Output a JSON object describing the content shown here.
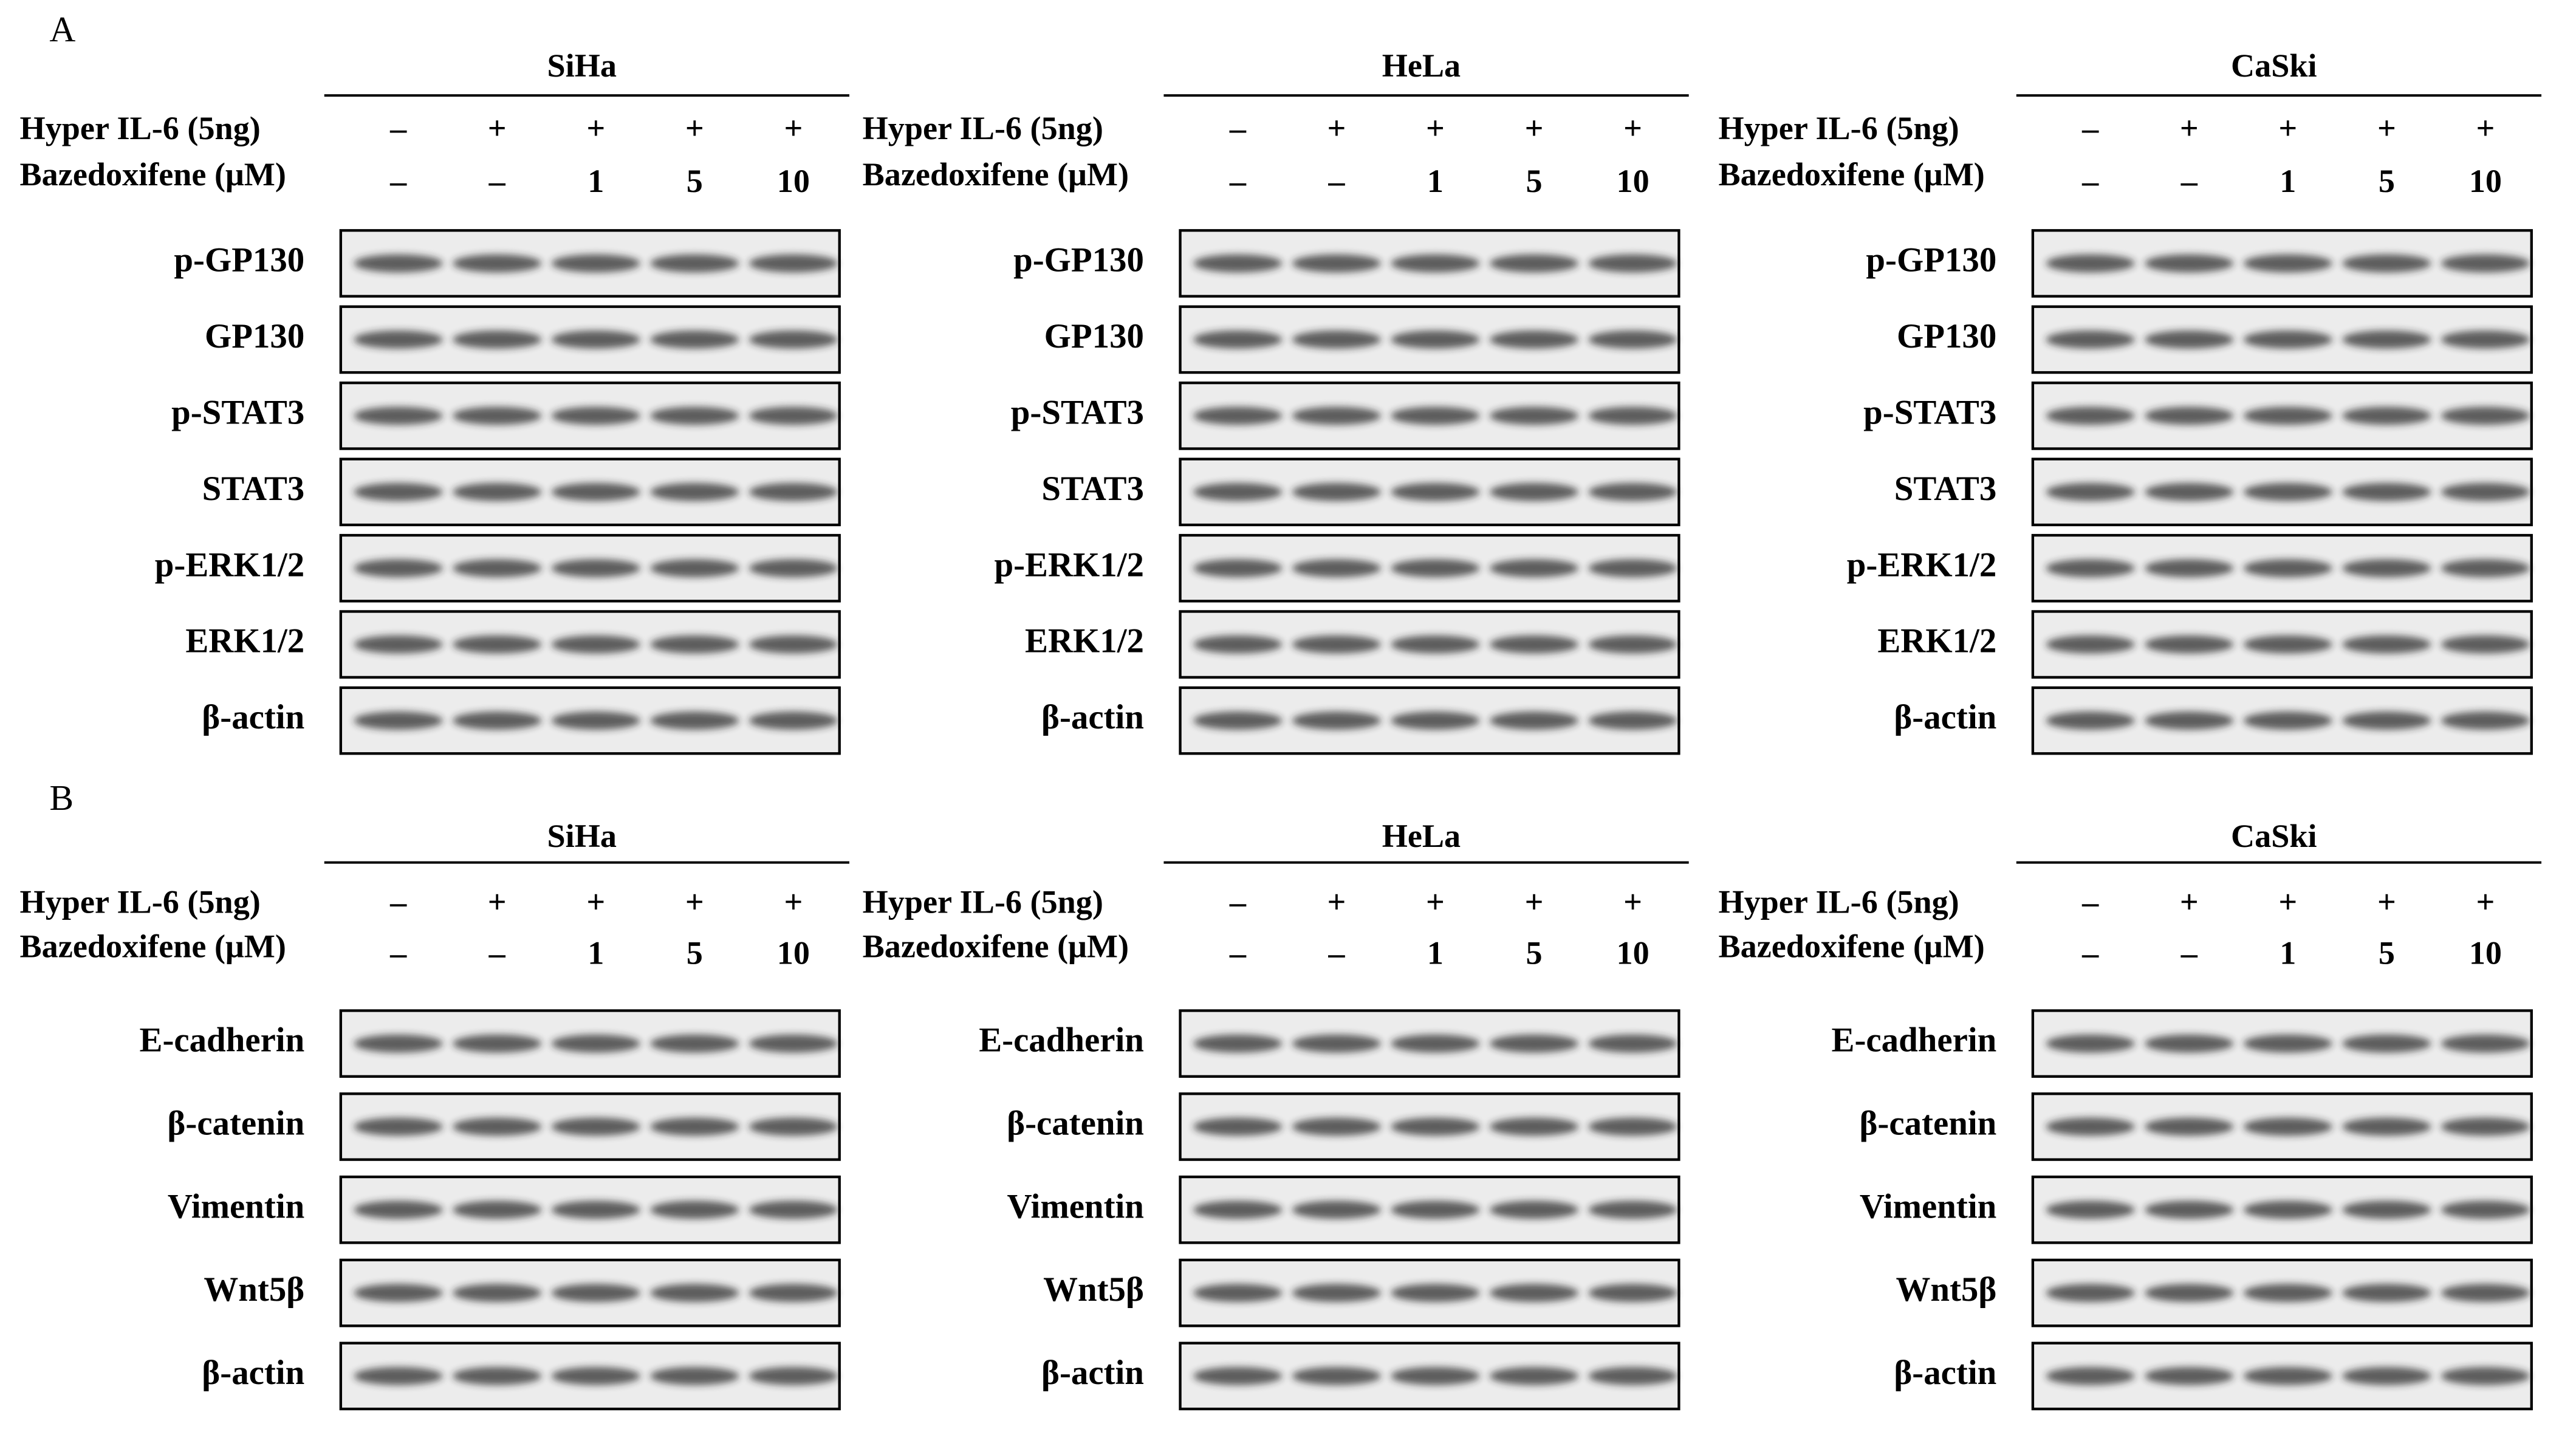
{
  "panels": [
    {
      "label": "A",
      "blots": [
        {
          "cell_line": "SiHa",
          "treatments": [
            {
              "name": "Hyper IL-6 (5ng)",
              "lanes": [
                "–",
                "+",
                "+",
                "+",
                "+"
              ]
            },
            {
              "name": "Bazedoxifene (μM)",
              "lanes": [
                "–",
                "–",
                "1",
                "5",
                "10"
              ]
            }
          ],
          "proteins": [
            "p-GP130",
            "GP130",
            "p-STAT3",
            "STAT3",
            "p-ERK1/2",
            "ERK1/2",
            "β-actin"
          ]
        },
        {
          "cell_line": "HeLa",
          "treatments": [
            {
              "name": "Hyper IL-6 (5ng)",
              "lanes": [
                "–",
                "+",
                "+",
                "+",
                "+"
              ]
            },
            {
              "name": "Bazedoxifene (μM)",
              "lanes": [
                "–",
                "–",
                "1",
                "5",
                "10"
              ]
            }
          ],
          "proteins": [
            "p-GP130",
            "GP130",
            "p-STAT3",
            "STAT3",
            "p-ERK1/2",
            "ERK1/2",
            "β-actin"
          ]
        },
        {
          "cell_line": "CaSki",
          "treatments": [
            {
              "name": "Hyper IL-6 (5ng)",
              "lanes": [
                "–",
                "+",
                "+",
                "+",
                "+"
              ]
            },
            {
              "name": "Bazedoxifene (μM)",
              "lanes": [
                "–",
                "–",
                "1",
                "5",
                "10"
              ]
            }
          ],
          "proteins": [
            "p-GP130",
            "GP130",
            "p-STAT3",
            "STAT3",
            "p-ERK1/2",
            "ERK1/2",
            "β-actin"
          ]
        }
      ]
    },
    {
      "label": "B",
      "blots": [
        {
          "cell_line": "SiHa",
          "treatments": [
            {
              "name": "Hyper IL-6 (5ng)",
              "lanes": [
                "–",
                "+",
                "+",
                "+",
                "+"
              ]
            },
            {
              "name": "Bazedoxifene (μM)",
              "lanes": [
                "–",
                "–",
                "1",
                "5",
                "10"
              ]
            }
          ],
          "proteins": [
            "E-cadherin",
            "β-catenin",
            "Vimentin",
            "Wnt5β",
            "β-actin"
          ]
        },
        {
          "cell_line": "HeLa",
          "treatments": [
            {
              "name": "Hyper IL-6 (5ng)",
              "lanes": [
                "–",
                "+",
                "+",
                "+",
                "+"
              ]
            },
            {
              "name": "Bazedoxifene (μM)",
              "lanes": [
                "–",
                "–",
                "1",
                "5",
                "10"
              ]
            }
          ],
          "proteins": [
            "E-cadherin",
            "β-catenin",
            "Vimentin",
            "Wnt5β",
            "β-actin"
          ]
        },
        {
          "cell_line": "CaSki",
          "treatments": [
            {
              "name": "Hyper IL-6 (5ng)",
              "lanes": [
                "–",
                "+",
                "+",
                "+",
                "+"
              ]
            },
            {
              "name": "Bazedoxifene (μM)",
              "lanes": [
                "–",
                "–",
                "1",
                "5",
                "10"
              ]
            }
          ],
          "proteins": [
            "E-cadherin",
            "β-catenin",
            "Vimentin",
            "Wnt5β",
            "β-actin"
          ]
        }
      ]
    }
  ]
}
